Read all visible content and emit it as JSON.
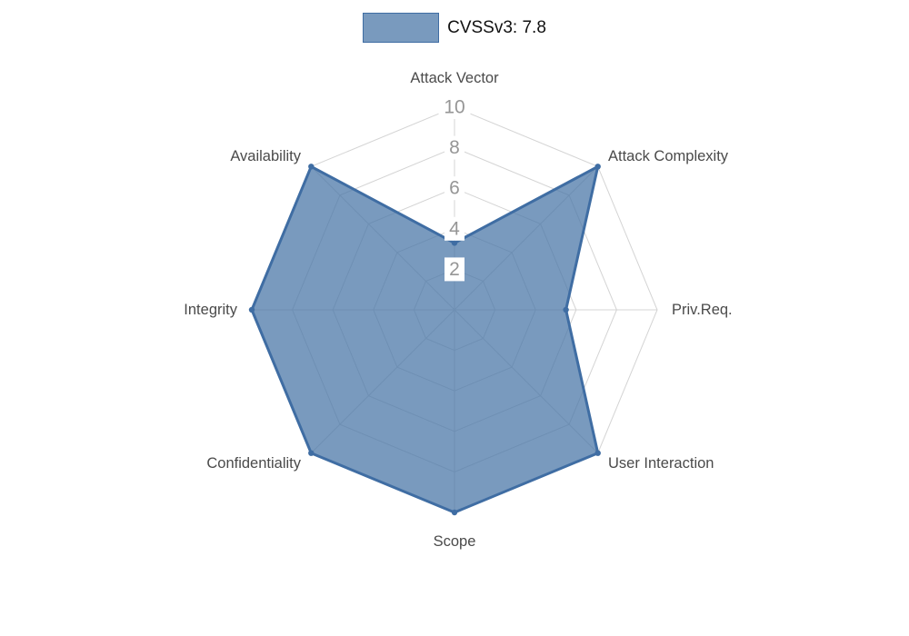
{
  "legend": {
    "label": "CVSSv3: 7.8"
  },
  "chart_data": {
    "type": "radar",
    "title": "CVSSv3: 7.8",
    "categories": [
      "Attack Vector",
      "Attack Complexity",
      "Priv.Req.",
      "User Interaction",
      "Scope",
      "Confidentiality",
      "Integrity",
      "Availability"
    ],
    "series": [
      {
        "name": "CVSSv3: 7.8",
        "values": [
          3.3,
          10,
          5.5,
          10,
          10,
          10,
          10,
          10
        ]
      }
    ],
    "scale": {
      "min": 0,
      "max": 10,
      "ticks": [
        2,
        4,
        6,
        8,
        10
      ]
    },
    "legend_position": "top",
    "grid": true,
    "colors": {
      "fill": "rgba(76,120,168,0.75)",
      "stroke": "#3f6da3",
      "grid": "#d4d4d4",
      "tick_text": "#969696",
      "tick_backdrop": "#ffffff",
      "label_text": "#4a4a4a"
    }
  }
}
